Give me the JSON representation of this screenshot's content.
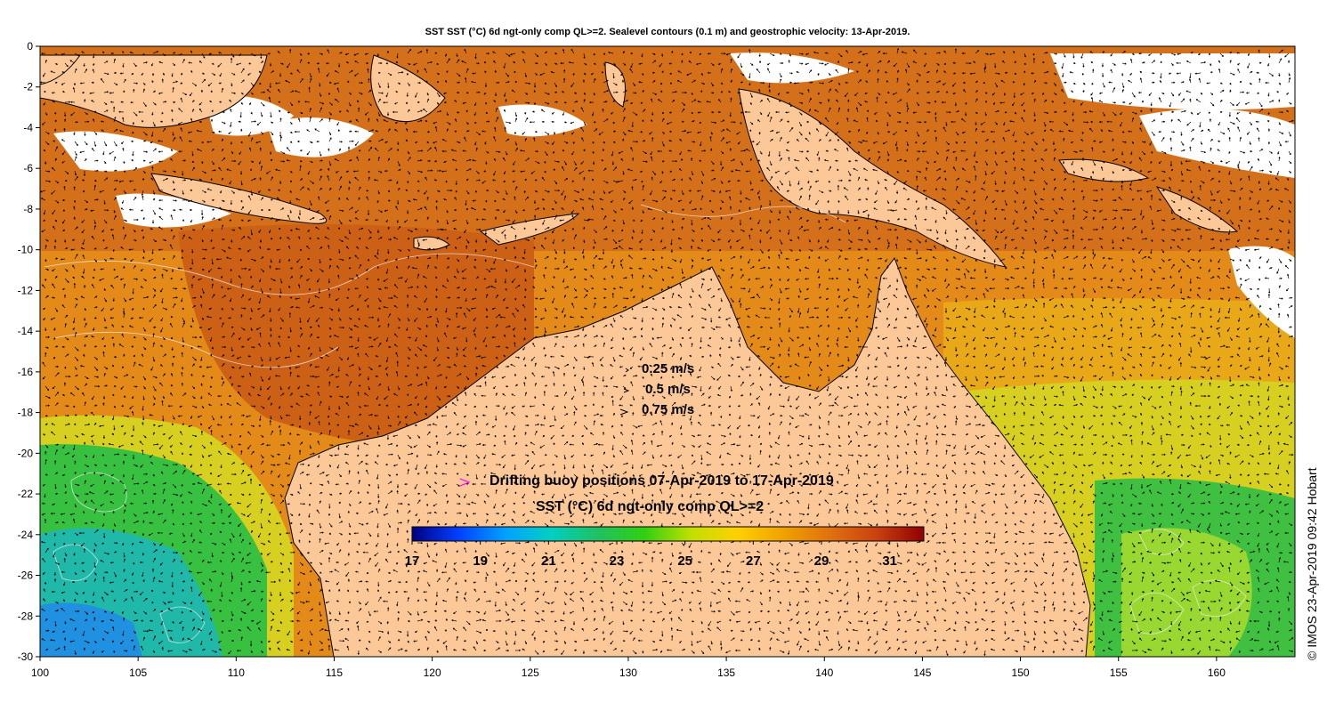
{
  "title": "SST SST (°C) 6d ngt-only comp QL>=2. Sealevel contours (0.1 m) and geostrophic velocity: 13-Apr-2019.",
  "credit": "© IMOS 23-Apr-2019 09:42 Hobart",
  "velocity_legend": [
    {
      "label": "0.25 m/s"
    },
    {
      "label": "0.5 m/s"
    },
    {
      "label": "0.75 m/s"
    }
  ],
  "buoy_legend": {
    "marker": ">",
    "label": "Drifting buoy positions 07-Apr-2019 to 17-Apr-2019",
    "color": "#ff00ff"
  },
  "colorbar": {
    "title": "SST (°C) 6d ngt-only comp QL>=2",
    "range": [
      17,
      32
    ],
    "ticks": [
      "17",
      "19",
      "21",
      "23",
      "25",
      "27",
      "29",
      "31"
    ],
    "colors": [
      "#000080",
      "#0040ff",
      "#00a0ff",
      "#00d0c0",
      "#20c060",
      "#30d010",
      "#c0e000",
      "#ffd000",
      "#f0a000",
      "#e07010",
      "#c84010",
      "#900000"
    ]
  },
  "axes": {
    "x_ticks": [
      "100",
      "105",
      "110",
      "115",
      "120",
      "125",
      "130",
      "135",
      "140",
      "145",
      "150",
      "155",
      "160"
    ],
    "y_ticks": [
      "0",
      "-2",
      "-4",
      "-6",
      "-8",
      "-10",
      "-12",
      "-14",
      "-16",
      "-18",
      "-20",
      "-22",
      "-24",
      "-26",
      "-28",
      "-30"
    ],
    "lon_range": [
      100,
      164
    ],
    "lat_range": [
      -30,
      0
    ]
  },
  "colors": {
    "land": "#fcc898",
    "warm_sea": "#e07a10",
    "hot_sea": "#c85a10",
    "cool_sea": "#d8d820",
    "green_sea": "#30c040",
    "cold_sea": "#20a8c8"
  }
}
